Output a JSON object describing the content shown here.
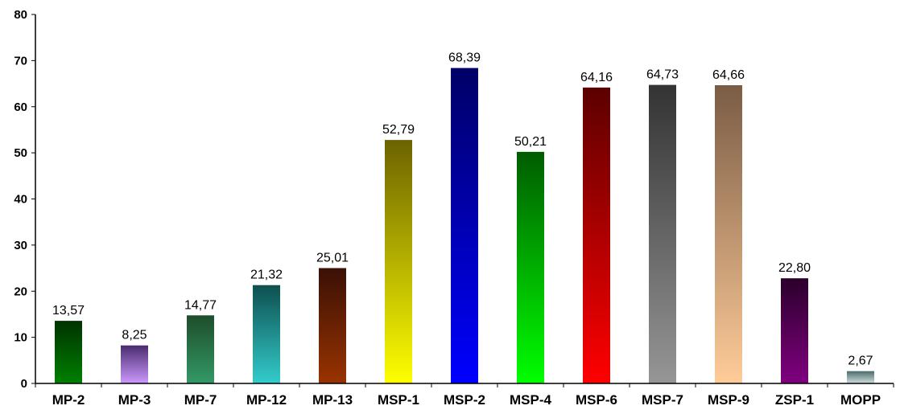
{
  "chart_data": {
    "type": "bar",
    "categories": [
      "MP-2",
      "MP-3",
      "MP-7",
      "MP-12",
      "MP-13",
      "MSP-1",
      "MSP-2",
      "MSP-4",
      "MSP-6",
      "MSP-7",
      "MSP-9",
      "ZSP-1",
      "MOPP"
    ],
    "values": [
      13.57,
      8.25,
      14.77,
      21.32,
      25.01,
      52.79,
      68.39,
      50.21,
      64.16,
      64.73,
      64.66,
      22.8,
      2.67
    ],
    "data_labels": [
      "13,57",
      "8,25",
      "14,77",
      "21,32",
      "25,01",
      "52,79",
      "68,39",
      "50,21",
      "64,16",
      "64,73",
      "64,66",
      "22,80",
      "2,67"
    ],
    "yticks": [
      "0",
      "10",
      "20",
      "30",
      "40",
      "50",
      "60",
      "70",
      "80"
    ],
    "ylim": [
      0,
      80
    ],
    "grid": false,
    "bar_colors": [
      [
        "#003300",
        "#008000"
      ],
      [
        "#4b2c6e",
        "#cc99ff"
      ],
      [
        "#1e4d2b",
        "#339966"
      ],
      [
        "#0e4f4f",
        "#33cccc"
      ],
      [
        "#3a1005",
        "#993300"
      ],
      [
        "#6b6300",
        "#ffff00"
      ],
      [
        "#000066",
        "#0000ff"
      ],
      [
        "#005c00",
        "#00ff00"
      ],
      [
        "#5c0000",
        "#ff0000"
      ],
      [
        "#333333",
        "#969696"
      ],
      [
        "#7a5c45",
        "#ffcc99"
      ],
      [
        "#2b002b",
        "#800080"
      ],
      [
        "#4d6b6b",
        "#cce0e0"
      ]
    ]
  }
}
